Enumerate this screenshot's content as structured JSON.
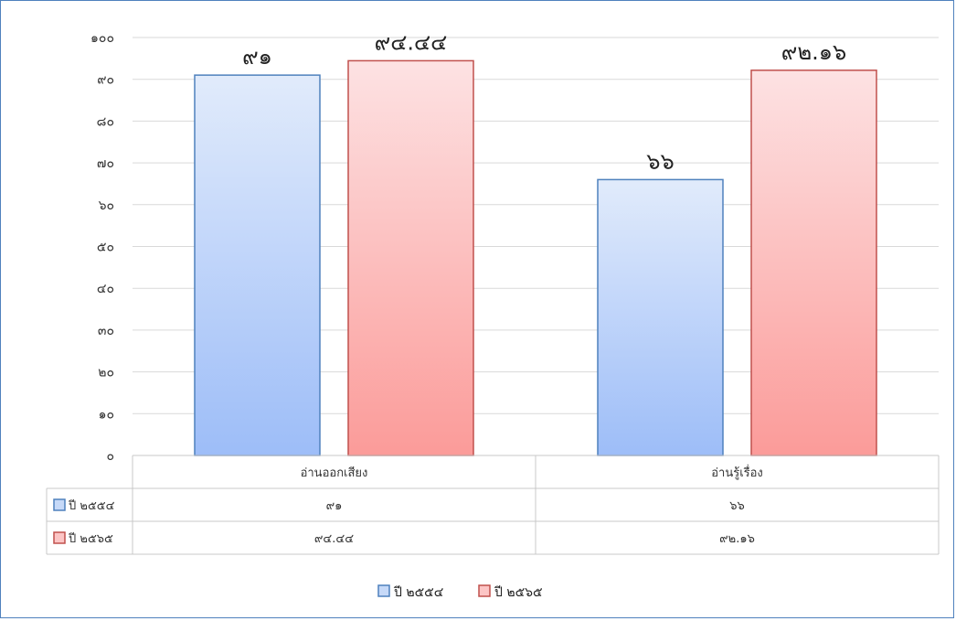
{
  "chart_data": {
    "type": "bar",
    "categories": [
      "อ่านออกเสียง",
      "อ่านรู้เรื่อง"
    ],
    "series": [
      {
        "name": "ปี ๒๕๕๔",
        "values": [
          91,
          66
        ],
        "labels": [
          "๙๑",
          "๖๖"
        ],
        "color": "#4f81bd"
      },
      {
        "name": "ปี ๒๕๖๕",
        "values": [
          94.44,
          92.16
        ],
        "labels": [
          "๙๔.๔๔",
          "๙๒.๑๖"
        ],
        "color": "#c0504d"
      }
    ],
    "ylim": [
      0,
      100
    ],
    "y_ticks": [
      "๐",
      "๑๐",
      "๒๐",
      "๓๐",
      "๔๐",
      "๕๐",
      "๖๐",
      "๗๐",
      "๘๐",
      "๙๐",
      "๑๐๐"
    ],
    "grid": true,
    "legend_position": "bottom",
    "data_table": true,
    "title": "",
    "xlabel": "",
    "ylabel": ""
  }
}
